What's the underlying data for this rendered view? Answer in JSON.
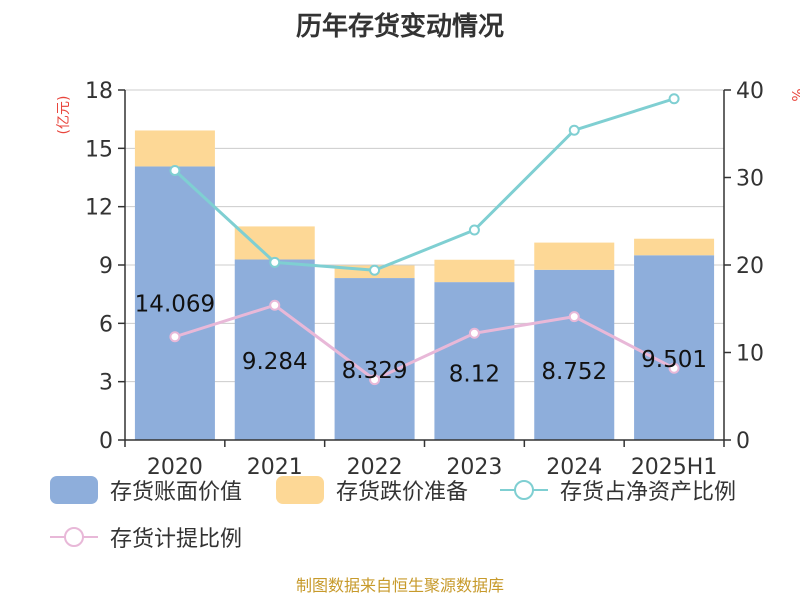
{
  "title": "历年存货变动情况",
  "source": "制图数据来自恒生聚源数据库",
  "chart_data": {
    "type": "bar",
    "categories": [
      "2020",
      "2021",
      "2022",
      "2023",
      "2024",
      "2025H1"
    ],
    "left_axis": {
      "label": "(亿元)",
      "min": 0,
      "max": 18,
      "ticks": [
        0,
        3,
        6,
        9,
        12,
        15,
        18
      ]
    },
    "right_axis": {
      "label": "%",
      "min": 0,
      "max": 40,
      "ticks": [
        0,
        10,
        20,
        30,
        40
      ]
    },
    "series": [
      {
        "name": "存货账面价值",
        "kind": "bar",
        "axis": "left",
        "color": "#8eaedb",
        "values": [
          14.069,
          9.284,
          8.329,
          8.12,
          8.752,
          9.501
        ],
        "labels": [
          "14.069",
          "9.284",
          "8.329",
          "8.12",
          "8.752",
          "9.501"
        ]
      },
      {
        "name": "存货跌价准备",
        "kind": "bar-stack",
        "axis": "left",
        "color": "#fdd896",
        "values": [
          1.85,
          1.7,
          0.65,
          1.15,
          1.4,
          0.85
        ]
      },
      {
        "name": "存货占净资产比例",
        "kind": "line",
        "axis": "right",
        "color": "#7fcfd2",
        "values": [
          30.8,
          20.3,
          19.4,
          24.0,
          35.4,
          39.0
        ]
      },
      {
        "name": "存货计提比例",
        "kind": "line",
        "axis": "right",
        "color": "#e8b8d8",
        "values": [
          11.8,
          15.4,
          6.9,
          12.2,
          14.1,
          8.2
        ]
      }
    ],
    "grid": true,
    "legend_position": "bottom"
  }
}
